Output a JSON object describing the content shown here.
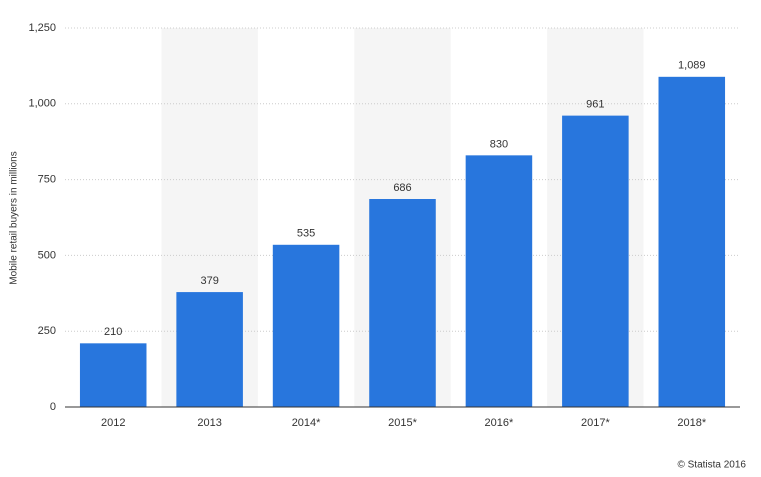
{
  "chart_data": {
    "type": "bar",
    "y_label": "Mobile retail buyers in millions",
    "categories": [
      "2012",
      "2013",
      "2014*",
      "2015*",
      "2016*",
      "2017*",
      "2018*"
    ],
    "values": [
      210,
      379,
      535,
      686,
      830,
      961,
      1089
    ],
    "value_labels": [
      "210",
      "379",
      "535",
      "686",
      "830",
      "961",
      "1,089"
    ],
    "color": "#2876dd",
    "ylim": [
      0,
      1250
    ],
    "yticks": [
      0,
      250,
      500,
      750,
      {
        "value": 1000,
        "label": "1,000"
      },
      {
        "value": 1250,
        "label": "1,250"
      }
    ],
    "grid": true,
    "credit": "© Statista 2016"
  }
}
